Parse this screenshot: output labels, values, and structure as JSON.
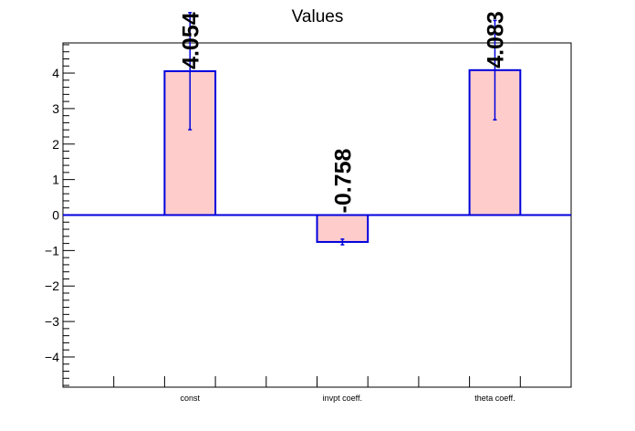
{
  "chart_data": {
    "type": "bar",
    "title": "Values",
    "categories": [
      "const",
      "invpt coeff.",
      "theta coeff."
    ],
    "values": [
      4.054,
      -0.758,
      4.083
    ],
    "errors": [
      1.65,
      0.08,
      1.4
    ],
    "value_labels": [
      "4.054",
      "-0.758",
      "4.083"
    ],
    "ylim": [
      -4.85,
      4.85
    ],
    "y_ticks": [
      -4,
      -3,
      -2,
      -1,
      0,
      1,
      2,
      3,
      4
    ],
    "y_tick_labels": [
      "−4",
      "−3",
      "−2",
      "−1",
      "0",
      "1",
      "2",
      "3",
      "4"
    ],
    "x_bins": 10,
    "bar_bins": [
      2,
      5,
      8
    ],
    "xlabel": "",
    "ylabel": "",
    "grid": false,
    "legend": "none",
    "colors": {
      "bar_fill": "#ffcccc",
      "bar_edge": "#0000dd",
      "axis": "#000000",
      "zero_line": "#0000dd"
    }
  }
}
